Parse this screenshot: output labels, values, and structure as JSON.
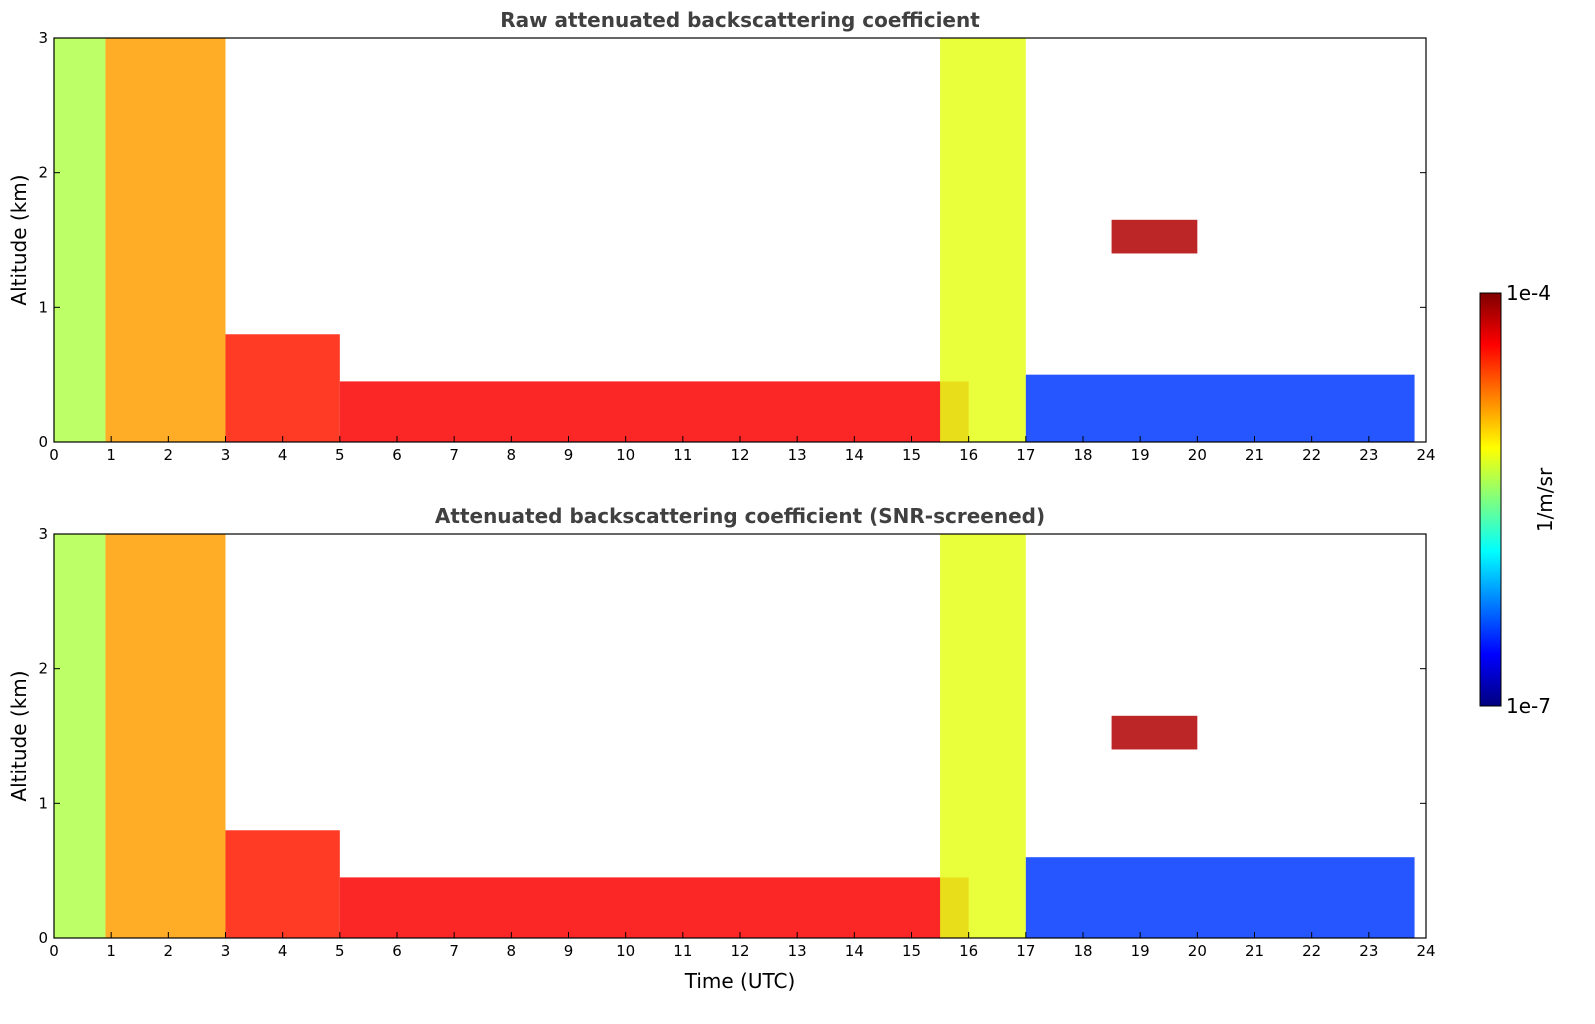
{
  "chart_data": [
    {
      "type": "heatmap",
      "title": "Raw attenuated backscattering coefficient",
      "xlabel": "",
      "ylabel": "Altitude (km)",
      "xlim": [
        0,
        24
      ],
      "ylim": [
        0,
        3
      ],
      "xticks": [
        "0",
        "1",
        "2",
        "3",
        "4",
        "5",
        "6",
        "7",
        "8",
        "9",
        "10",
        "11",
        "12",
        "13",
        "14",
        "15",
        "16",
        "17",
        "18",
        "19",
        "20",
        "21",
        "22",
        "23",
        "24"
      ],
      "yticks": [
        "0",
        "1",
        "2",
        "3"
      ],
      "data_end_time": 23.8,
      "features": [
        {
          "t0": 0.0,
          "t1": 0.9,
          "z0": 0,
          "z1": 3.0,
          "level": 0.55
        },
        {
          "t0": 0.9,
          "t1": 3.0,
          "z0": 0,
          "z1": 3.0,
          "level": 0.72
        },
        {
          "t0": 3.0,
          "t1": 5.0,
          "z0": 0,
          "z1": 0.8,
          "level": 0.85
        },
        {
          "t0": 5.0,
          "t1": 16.0,
          "z0": 0,
          "z1": 0.45,
          "level": 0.88
        },
        {
          "t0": 15.5,
          "t1": 17.0,
          "z0": 0,
          "z1": 3.0,
          "level": 0.6
        },
        {
          "t0": 17.0,
          "t1": 23.8,
          "z0": 0,
          "z1": 0.5,
          "level": 0.18
        },
        {
          "t0": 18.5,
          "t1": 20.0,
          "z0": 1.4,
          "z1": 1.65,
          "level": 0.95
        }
      ]
    },
    {
      "type": "heatmap",
      "title": "Attenuated backscattering coefficient (SNR-screened)",
      "xlabel": "Time (UTC)",
      "ylabel": "Altitude (km)",
      "xlim": [
        0,
        24
      ],
      "ylim": [
        0,
        3
      ],
      "xticks": [
        "0",
        "1",
        "2",
        "3",
        "4",
        "5",
        "6",
        "7",
        "8",
        "9",
        "10",
        "11",
        "12",
        "13",
        "14",
        "15",
        "16",
        "17",
        "18",
        "19",
        "20",
        "21",
        "22",
        "23",
        "24"
      ],
      "yticks": [
        "0",
        "1",
        "2",
        "3"
      ],
      "data_end_time": 23.8,
      "features": [
        {
          "t0": 0.0,
          "t1": 0.9,
          "z0": 0,
          "z1": 3.0,
          "level": 0.55
        },
        {
          "t0": 0.9,
          "t1": 3.0,
          "z0": 0,
          "z1": 3.0,
          "level": 0.72
        },
        {
          "t0": 3.0,
          "t1": 5.0,
          "z0": 0,
          "z1": 0.8,
          "level": 0.85
        },
        {
          "t0": 5.0,
          "t1": 16.0,
          "z0": 0,
          "z1": 0.45,
          "level": 0.88
        },
        {
          "t0": 15.5,
          "t1": 17.0,
          "z0": 0,
          "z1": 3.0,
          "level": 0.6
        },
        {
          "t0": 17.0,
          "t1": 23.8,
          "z0": 0,
          "z1": 0.6,
          "level": 0.18
        },
        {
          "t0": 18.5,
          "t1": 20.0,
          "z0": 1.4,
          "z1": 1.65,
          "level": 0.95
        }
      ]
    }
  ],
  "colorbar": {
    "label": "1/m/sr",
    "max_label": "1e-4",
    "min_label": "1e-7",
    "colormap": "jet",
    "colors": [
      "#00007f",
      "#0000ff",
      "#007fff",
      "#00ffff",
      "#7fff7f",
      "#ffff00",
      "#ff7f00",
      "#ff0000",
      "#7f0000"
    ]
  }
}
